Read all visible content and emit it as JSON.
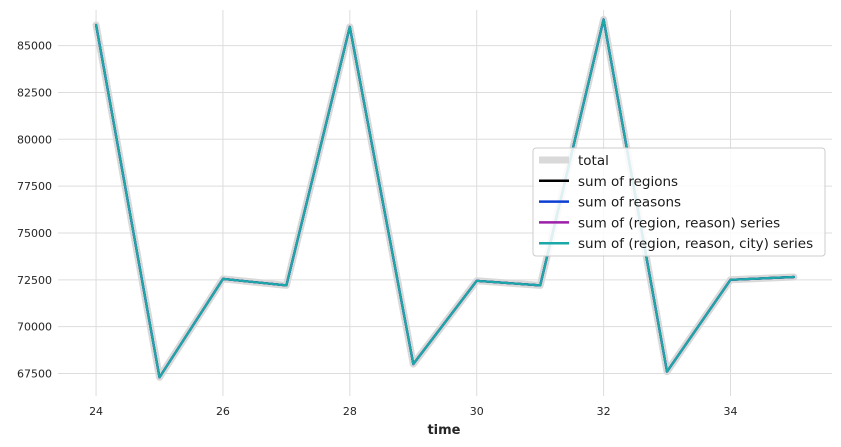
{
  "chart_data": {
    "type": "line",
    "title": "",
    "xlabel": "time",
    "ylabel": "",
    "xlim": [
      23.4,
      35.6
    ],
    "ylim": [
      66300,
      86900
    ],
    "xticks": [
      "24",
      "26",
      "28",
      "30",
      "32",
      "34"
    ],
    "yticks": [
      "67500",
      "70000",
      "72500",
      "75000",
      "77500",
      "80000",
      "82500",
      "85000"
    ],
    "grid": true,
    "legend_position": "right",
    "x": [
      24,
      25,
      26,
      27,
      28,
      29,
      30,
      31,
      32,
      33,
      34,
      35
    ],
    "series": [
      {
        "name": "total",
        "color": "#d9d9d9",
        "values": [
          86100,
          67300,
          72550,
          72200,
          86000,
          68000,
          72450,
          72200,
          86400,
          67600,
          72500,
          72650
        ]
      },
      {
        "name": "sum of regions",
        "color": "#000000",
        "values": [
          86100,
          67300,
          72550,
          72200,
          86000,
          68000,
          72450,
          72200,
          86400,
          67600,
          72500,
          72650
        ]
      },
      {
        "name": "sum of reasons",
        "color": "#0c3ed4",
        "values": [
          86100,
          67300,
          72550,
          72200,
          86000,
          68000,
          72450,
          72200,
          86400,
          67600,
          72500,
          72650
        ]
      },
      {
        "name": "sum of (region, reason) series",
        "color": "#9b1fa8",
        "values": [
          86100,
          67300,
          72550,
          72200,
          86000,
          68000,
          72450,
          72200,
          86400,
          67600,
          72500,
          72650
        ]
      },
      {
        "name": "sum of (region, reason, city) series",
        "color": "#1aa8a8",
        "values": [
          86100,
          67300,
          72550,
          72200,
          86000,
          68000,
          72450,
          72200,
          86400,
          67600,
          72500,
          72650
        ]
      }
    ]
  }
}
